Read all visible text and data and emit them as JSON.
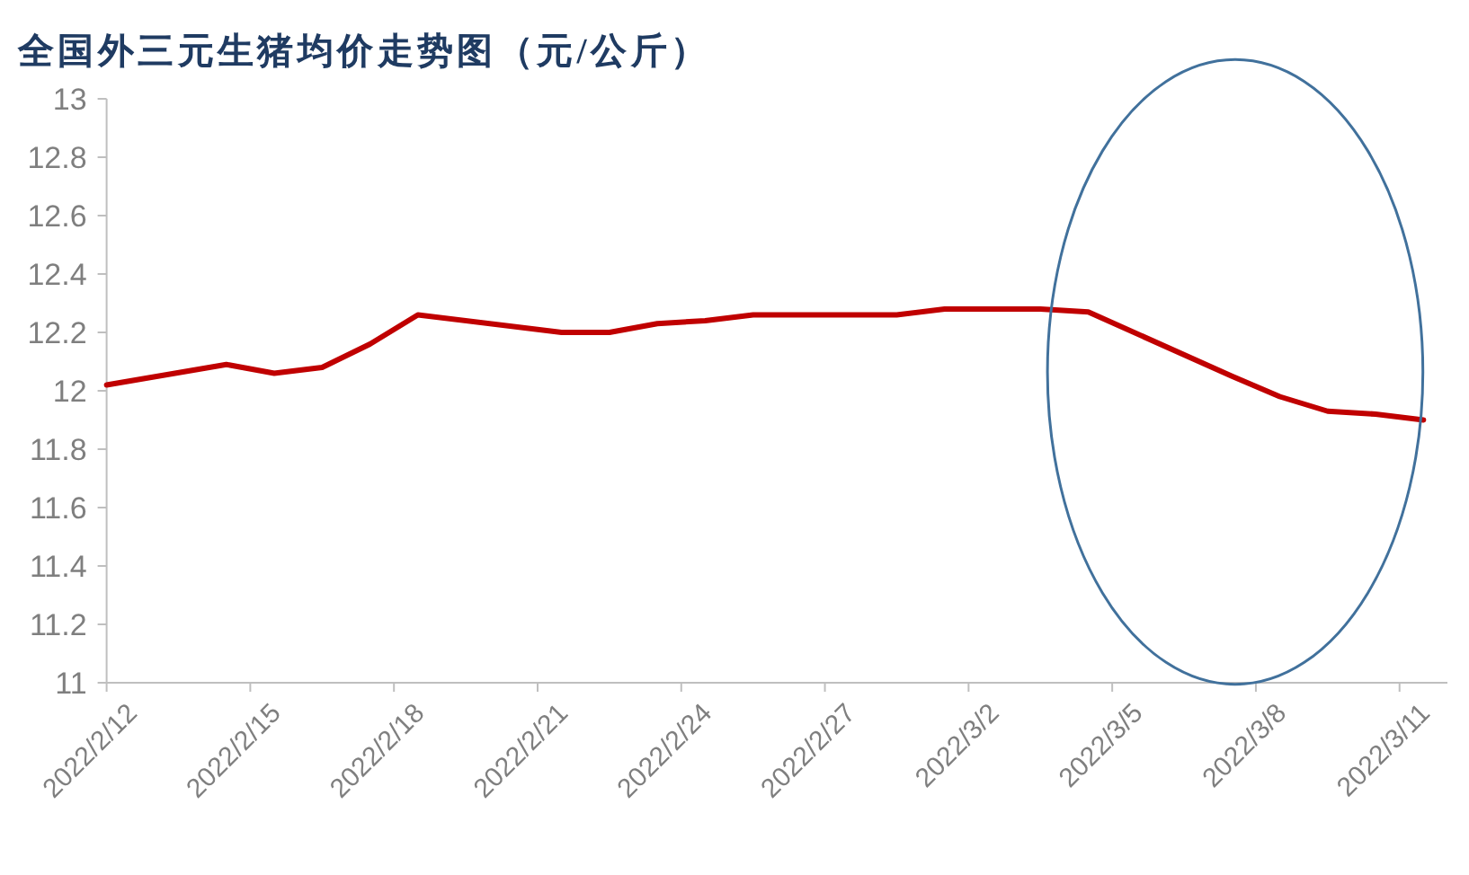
{
  "chart_data": {
    "type": "line",
    "title": "全国外三元生猪均价走势图（元/公斤）",
    "x": [
      "2022-02-12",
      "2022-02-14T12:00",
      "2022-02-15T12:00",
      "2022-02-16T12:00",
      "2022-02-17T12:00",
      "2022-02-18T12:00",
      "2022-02-21T12:00",
      "2022-02-22T12:00",
      "2022-02-23T12:00",
      "2022-02-24T12:00",
      "2022-02-25T12:00",
      "2022-02-28T12:00",
      "2022-03-01T12:00",
      "2022-03-03T12:00",
      "2022-03-04T12:00",
      "2022-03-07T12:00",
      "2022-03-08T12:00",
      "2022-03-09T12:00",
      "2022-03-10T12:00",
      "2022-03-11T12:00"
    ],
    "series": [
      {
        "color": "#c00000",
        "values": [
          12.02,
          12.09,
          12.06,
          12.08,
          12.16,
          12.26,
          12.2,
          12.2,
          12.23,
          12.24,
          12.26,
          12.26,
          12.28,
          12.28,
          12.27,
          12.05,
          11.98,
          11.93,
          11.92,
          11.9
        ]
      }
    ],
    "xlim": [
      "2022-02-12",
      "2022-03-12"
    ],
    "xticks": [
      {
        "value": "2022-02-12",
        "label": "2022/2/12"
      },
      {
        "value": "2022-02-15",
        "label": "2022/2/15"
      },
      {
        "value": "2022-02-18",
        "label": "2022/2/18"
      },
      {
        "value": "2022-02-21",
        "label": "2022/2/21"
      },
      {
        "value": "2022-02-24",
        "label": "2022/2/24"
      },
      {
        "value": "2022-02-27",
        "label": "2022/2/27"
      },
      {
        "value": "2022-03-02",
        "label": "2022/3/2"
      },
      {
        "value": "2022-03-05",
        "label": "2022/3/5"
      },
      {
        "value": "2022-03-08",
        "label": "2022/3/8"
      },
      {
        "value": "2022-03-11",
        "label": "2022/3/11"
      }
    ],
    "ylim": [
      11,
      13
    ],
    "yticks": [
      11,
      11.2,
      11.4,
      11.6,
      11.8,
      12,
      12.2,
      12.4,
      12.6,
      12.8,
      13
    ]
  }
}
